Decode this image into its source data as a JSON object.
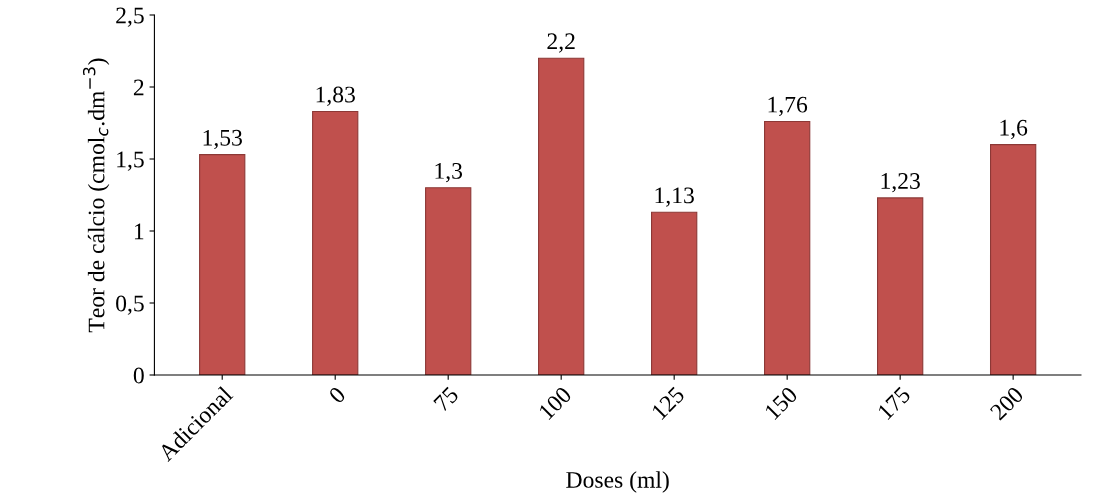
{
  "chart_data": {
    "type": "bar",
    "xlabel": "Doses (ml)",
    "ylabel": "Teor de cálcio (cmol$_{c}$.dm$^{−3}$)",
    "categories": [
      "Adicional",
      "0",
      "75",
      "100",
      "125",
      "150",
      "175",
      "200"
    ],
    "values": [
      1.53,
      1.83,
      1.3,
      2.2,
      1.13,
      1.76,
      1.23,
      1.6
    ],
    "value_labels": [
      "1,53",
      "1,83",
      "1,3",
      "2,2",
      "1,13",
      "1,76",
      "1,23",
      "1,6"
    ],
    "color": "#c0504d",
    "ylim": [
      0,
      2.5
    ],
    "yticks": [
      0,
      {
        "value": 0.5,
        "label": "0,5"
      },
      1,
      {
        "value": 1.5,
        "label": "1,5"
      },
      2,
      {
        "value": 2.5,
        "label": "2,5"
      }
    ],
    "grid": false
  }
}
